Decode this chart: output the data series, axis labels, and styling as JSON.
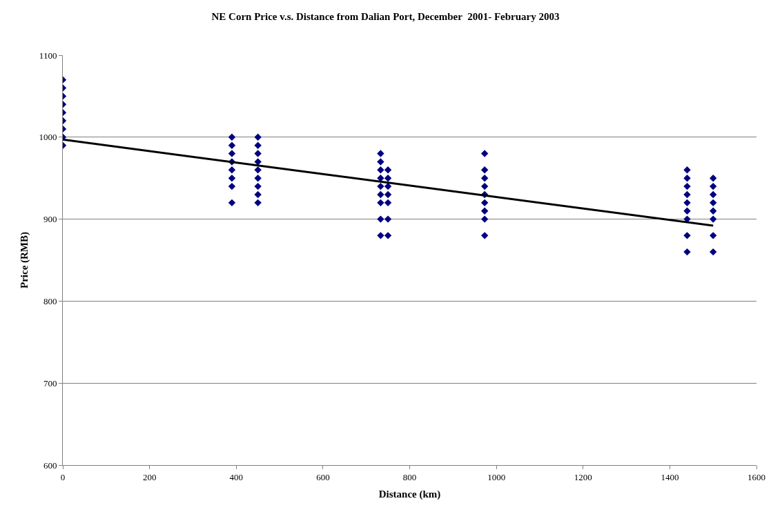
{
  "chart_data": {
    "type": "scatter",
    "title": "NE Corn Price v.s. Distance from Dalian Port, December  2001- February 2003",
    "xlabel": "Distance (km)",
    "ylabel": "Price (RMB)",
    "xlim": [
      0,
      1600
    ],
    "xticks": [
      0,
      200,
      400,
      600,
      800,
      1000,
      1200,
      1400,
      1600
    ],
    "ylim": [
      600,
      1100
    ],
    "yticks": [
      600,
      700,
      800,
      900,
      1000,
      1100
    ],
    "grid": "y",
    "marker": "diamond",
    "series": [
      {
        "color": "#000080",
        "x": [
          0,
          0,
          0,
          0,
          0,
          0,
          0,
          0,
          0,
          390,
          390,
          390,
          390,
          390,
          390,
          390,
          390,
          450,
          450,
          450,
          450,
          450,
          450,
          450,
          450,
          450,
          733,
          733,
          733,
          733,
          733,
          733,
          733,
          733,
          733,
          750,
          750,
          750,
          750,
          750,
          750,
          750,
          973,
          973,
          973,
          973,
          973,
          973,
          973,
          973,
          973,
          1440,
          1440,
          1440,
          1440,
          1440,
          1440,
          1440,
          1440,
          1440,
          1500,
          1500,
          1500,
          1500,
          1500,
          1500,
          1500,
          1500
        ],
        "values": [
          1070,
          1060,
          1050,
          1040,
          1030,
          1020,
          1010,
          1000,
          990,
          1000,
          990,
          980,
          970,
          960,
          950,
          940,
          920,
          1000,
          990,
          980,
          970,
          960,
          950,
          940,
          930,
          920,
          980,
          970,
          960,
          950,
          940,
          930,
          920,
          900,
          880,
          960,
          950,
          940,
          930,
          920,
          900,
          880,
          980,
          960,
          950,
          940,
          930,
          920,
          910,
          900,
          880,
          960,
          950,
          940,
          930,
          920,
          910,
          900,
          880,
          860,
          950,
          940,
          930,
          920,
          910,
          900,
          880,
          860
        ]
      },
      {
        "type": "line",
        "color": "#000000",
        "line_style": "solid",
        "marker": "none",
        "x": [
          0,
          1500
        ],
        "values": [
          997,
          892
        ]
      }
    ]
  }
}
